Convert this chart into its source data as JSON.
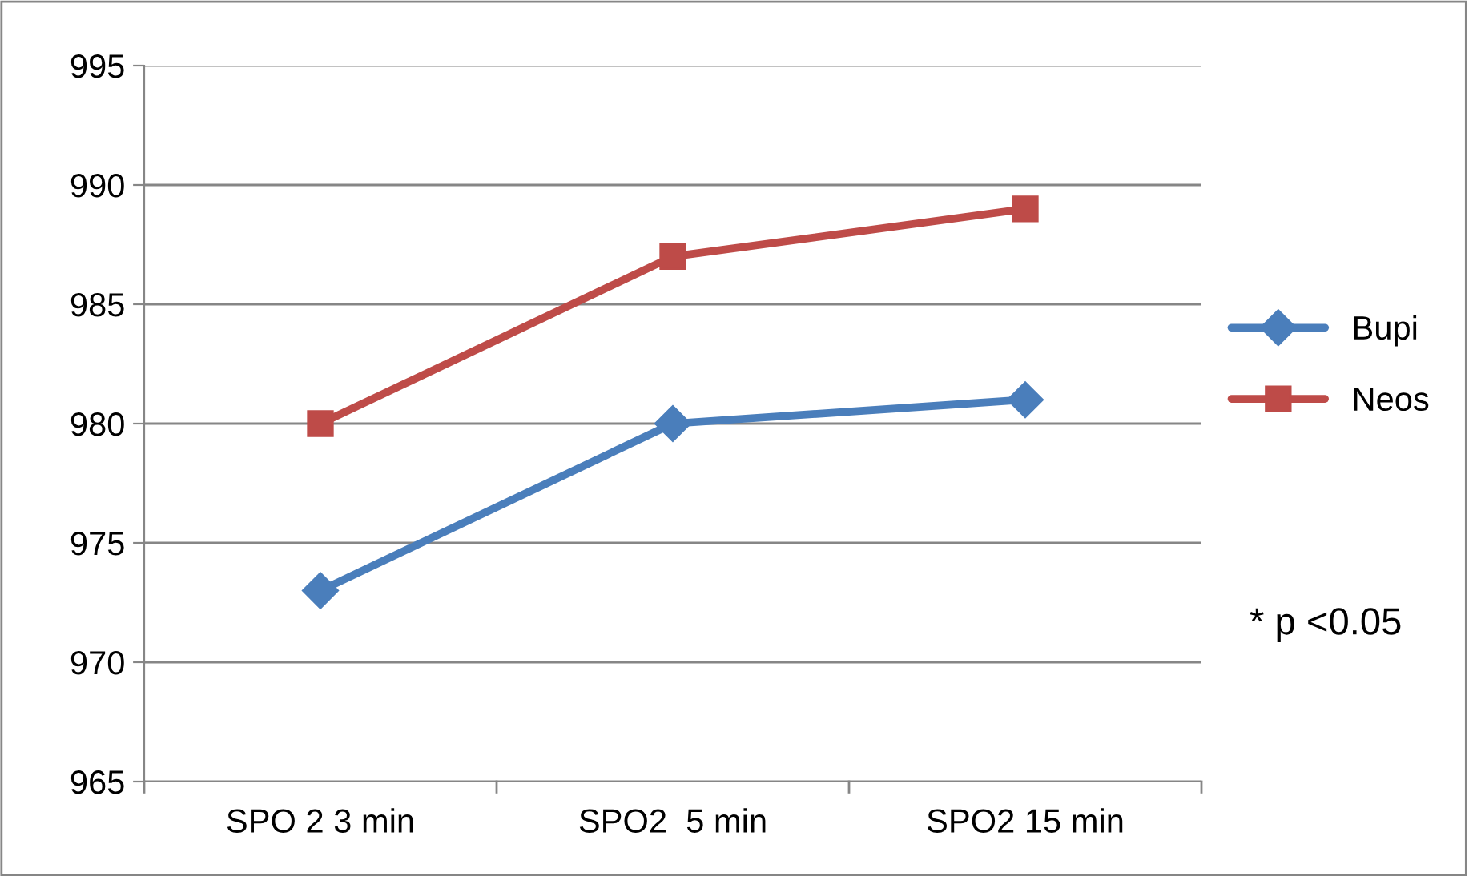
{
  "chart_data": {
    "type": "line",
    "categories": [
      "SPO 2 3 min",
      "SPO2  5 min",
      "SPO2 15 min"
    ],
    "series": [
      {
        "name": "Bupi",
        "color": "#4a7ebb",
        "marker": "diamond",
        "values": [
          973,
          980,
          981
        ]
      },
      {
        "name": "Neos",
        "color": "#be4b48",
        "marker": "square",
        "values": [
          980,
          987,
          989
        ]
      }
    ],
    "ylim": [
      965,
      995
    ],
    "yticks": [
      965,
      970,
      975,
      980,
      985,
      990,
      995
    ],
    "grid": "y",
    "legend": "right",
    "line_style": "solid",
    "annotations": [
      "* p <0.05"
    ]
  }
}
